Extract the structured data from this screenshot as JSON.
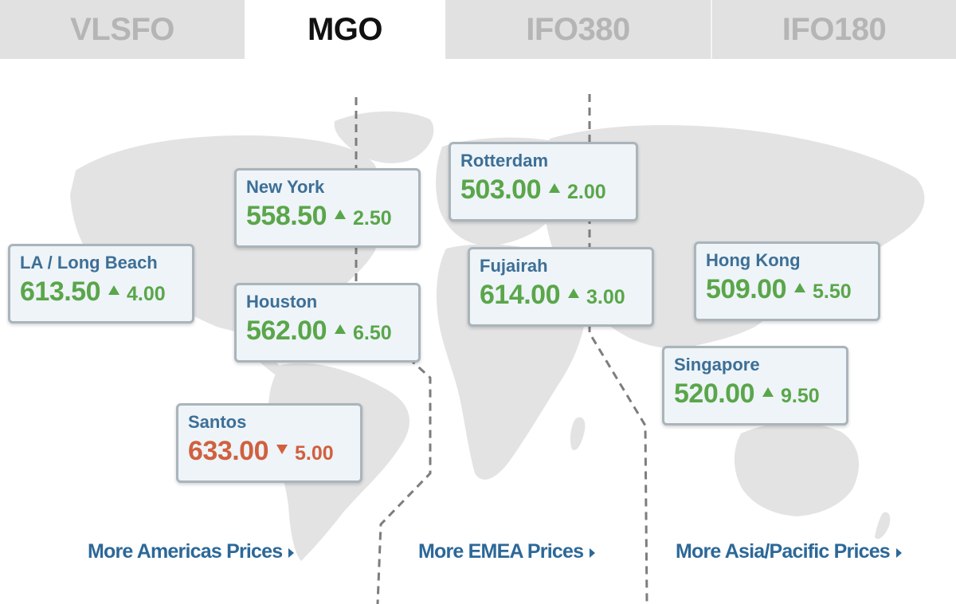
{
  "tabs": [
    {
      "label": "VLSFO",
      "active": false
    },
    {
      "label": "MGO",
      "active": true
    },
    {
      "label": "IFO380",
      "active": false
    },
    {
      "label": "IFO180",
      "active": false
    }
  ],
  "colors": {
    "up": "#5aa64a",
    "down": "#d0603f",
    "city": "#3d6f96",
    "link": "#2c6898",
    "map_land": "#e3e3e3"
  },
  "ports": [
    {
      "city": "LA / Long Beach",
      "price": "613.50",
      "direction": "up",
      "change": "4.00",
      "icon": "triangle-up-icon"
    },
    {
      "city": "New York",
      "price": "558.50",
      "direction": "up",
      "change": "2.50",
      "icon": "triangle-up-icon"
    },
    {
      "city": "Houston",
      "price": "562.00",
      "direction": "up",
      "change": "6.50",
      "icon": "triangle-up-icon"
    },
    {
      "city": "Santos",
      "price": "633.00",
      "direction": "down",
      "change": "5.00",
      "icon": "triangle-down-icon"
    },
    {
      "city": "Rotterdam",
      "price": "503.00",
      "direction": "up",
      "change": "2.00",
      "icon": "triangle-up-icon"
    },
    {
      "city": "Fujairah",
      "price": "614.00",
      "direction": "up",
      "change": "3.00",
      "icon": "triangle-up-icon"
    },
    {
      "city": "Hong Kong",
      "price": "509.00",
      "direction": "up",
      "change": "5.50",
      "icon": "triangle-up-icon"
    },
    {
      "city": "Singapore",
      "price": "520.00",
      "direction": "up",
      "change": "9.50",
      "icon": "triangle-up-icon"
    }
  ],
  "links": {
    "americas": "More Americas Prices",
    "emea": "More EMEA Prices",
    "asia": "More Asia/Pacific Prices"
  }
}
